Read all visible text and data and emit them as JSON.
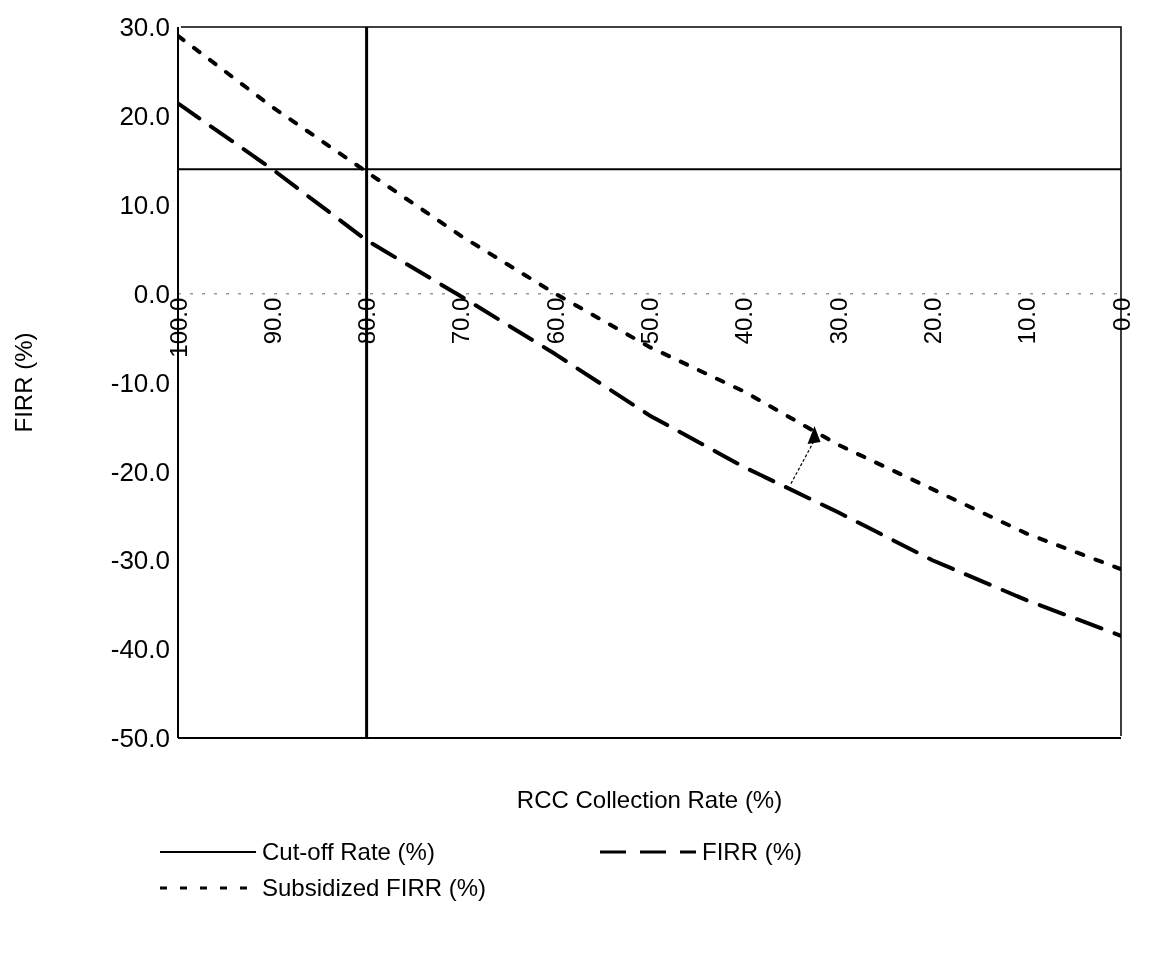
{
  "chart_data": {
    "type": "line",
    "xlabel": "RCC Collection Rate (%)",
    "ylabel": "FIRR (%)",
    "x": [
      100,
      90,
      80,
      70,
      60,
      50,
      40,
      30,
      20,
      10,
      0
    ],
    "series": [
      {
        "name": "Cut-off Rate (%)",
        "color": "#000000",
        "line_style": "solid",
        "values": [
          14,
          14,
          14,
          14,
          14,
          14,
          14,
          14,
          14,
          14,
          14
        ]
      },
      {
        "name": "FIRR (%)",
        "color": "#000000",
        "line_style": "dashed",
        "values": [
          21.4,
          14,
          6,
          -0.3,
          -6.8,
          -13.7,
          -19.5,
          -24.6,
          -30,
          -34.5,
          -38.5
        ]
      },
      {
        "name": "Subsidized FIRR (%)",
        "color": "#000000",
        "line_style": "dotted",
        "values": [
          29,
          21,
          13.7,
          6.5,
          0,
          -6,
          -11,
          -17,
          -22,
          -27,
          -31
        ]
      }
    ],
    "xlim": [
      100,
      0
    ],
    "xticks": [
      {
        "value": 100,
        "label": "100.0"
      },
      {
        "value": 90,
        "label": "90.0"
      },
      {
        "value": 80,
        "label": "80.0"
      },
      {
        "value": 70,
        "label": "70.0"
      },
      {
        "value": 60,
        "label": "60.0"
      },
      {
        "value": 50,
        "label": "50.0"
      },
      {
        "value": 40,
        "label": "40.0"
      },
      {
        "value": 30,
        "label": "30.0"
      },
      {
        "value": 20,
        "label": "20.0"
      },
      {
        "value": 10,
        "label": "10.0"
      },
      {
        "value": 0,
        "label": "0.0"
      }
    ],
    "ylim": [
      -50,
      30
    ],
    "yticks": [
      {
        "value": -50,
        "label": "-50.0"
      },
      {
        "value": -40,
        "label": "-40.0"
      },
      {
        "value": -30,
        "label": "-30.0"
      },
      {
        "value": -20,
        "label": "-20.0"
      },
      {
        "value": -10,
        "label": "-10.0"
      },
      {
        "value": 0,
        "label": "0.0"
      },
      {
        "value": 10,
        "label": "10.0"
      },
      {
        "value": 20,
        "label": "20.0"
      },
      {
        "value": 30,
        "label": "30.0"
      }
    ],
    "ref_lines": [
      {
        "axis": "y",
        "value": 0,
        "color": "#999999",
        "line_style": "dotted"
      },
      {
        "axis": "x",
        "value": 80,
        "color": "#000000",
        "line_style": "solid"
      }
    ],
    "legend": "bottom",
    "marker": "none"
  }
}
